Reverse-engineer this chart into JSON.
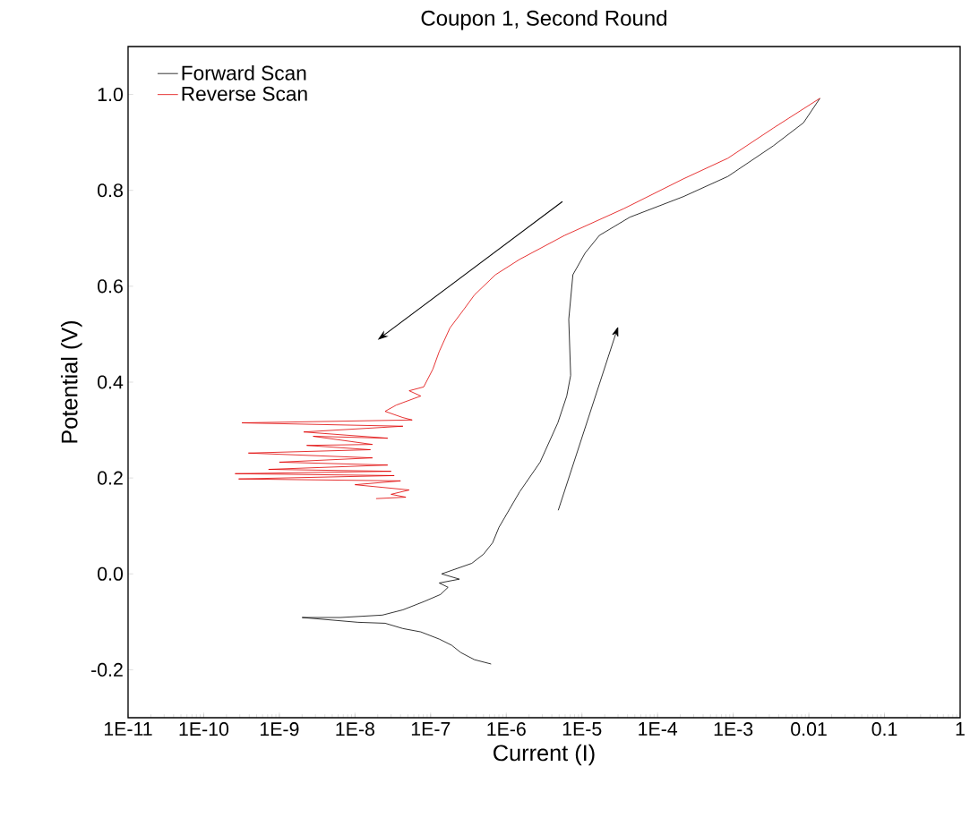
{
  "chart_data": {
    "type": "line",
    "title": "Coupon 1, Second Round",
    "xlabel": "Current (I)",
    "ylabel": "Potential (V)",
    "log": "x",
    "xlim": [
      1e-11,
      1
    ],
    "ylim": [
      -0.3,
      1.1
    ],
    "xticks": [
      {
        "value": 1e-11,
        "label": "1E-11"
      },
      {
        "value": 1e-10,
        "label": "1E-10"
      },
      {
        "value": 1e-09,
        "label": "1E-9"
      },
      {
        "value": 1e-08,
        "label": "1E-8"
      },
      {
        "value": 1e-07,
        "label": "1E-7"
      },
      {
        "value": 1e-06,
        "label": "1E-6"
      },
      {
        "value": 1e-05,
        "label": "1E-5"
      },
      {
        "value": 0.0001,
        "label": "1E-4"
      },
      {
        "value": 0.001,
        "label": "1E-3"
      },
      0.01,
      0.1,
      1
    ],
    "yticks": [
      -0.2,
      {
        "value": 0,
        "label": "0.0"
      },
      0.2,
      0.4,
      0.6,
      0.8,
      {
        "value": 1,
        "label": "1.0"
      }
    ],
    "legend": "top left",
    "grid": false,
    "marker": "none",
    "line_style": "solid",
    "series": [
      {
        "name": "Forward Scan",
        "color": "#000000",
        "x": [
          6.3e-07,
          3.8e-07,
          2.5e-07,
          1.9e-07,
          1.3e-07,
          7.4e-08,
          4.3e-08,
          2.5e-08,
          1.1e-08,
          2e-09,
          6.4e-09,
          2.3e-08,
          4.3e-08,
          8.1e-08,
          1.35e-07,
          1.7e-07,
          1.3e-07,
          2.4e-07,
          1.4e-07,
          3.5e-07,
          5e-07,
          6.6e-07,
          8e-07,
          1.5e-06,
          2.8e-06,
          4.8e-06,
          6.3e-06,
          7.1e-06,
          6.7e-06,
          7.6e-06,
          1.1e-05,
          1.7e-05,
          4.3e-05,
          0.00022,
          0.00085,
          0.0034,
          0.0085,
          0.014
        ],
        "values": [
          -0.188,
          -0.179,
          -0.164,
          -0.149,
          -0.136,
          -0.121,
          -0.114,
          -0.103,
          -0.101,
          -0.091,
          -0.091,
          -0.086,
          -0.075,
          -0.058,
          -0.043,
          -0.028,
          -0.019,
          -0.011,
          0.0,
          0.022,
          0.041,
          0.065,
          0.097,
          0.171,
          0.233,
          0.315,
          0.371,
          0.414,
          0.531,
          0.624,
          0.669,
          0.706,
          0.744,
          0.787,
          0.829,
          0.893,
          0.941,
          0.992
        ]
      },
      {
        "name": "Reverse Scan",
        "color": "#e00000",
        "x": [
          0.014,
          0.0034,
          0.00085,
          0.00022,
          3.6e-05,
          5.9e-06,
          1.5e-06,
          7.2e-07,
          3.8e-07,
          2.7e-07,
          1.8e-07,
          1.3e-07,
          1.07e-07,
          8.1e-08,
          5.2e-08,
          7.4e-08,
          3.5e-08,
          2.5e-08,
          4.3e-08,
          5.7e-08,
          3.2e-10,
          4.3e-08,
          2.1e-09,
          2.7e-08,
          2.8e-09,
          1.7e-08,
          2.3e-09,
          1.6e-08,
          3.9e-10,
          1.7e-08,
          1e-09,
          2.7e-08,
          7.2e-10,
          3e-08,
          2.6e-10,
          3.3e-08,
          2.9e-10,
          4e-08,
          1e-08,
          5.2e-08,
          3e-08,
          4.7e-08,
          1.9e-08
        ],
        "values": [
          0.992,
          0.93,
          0.867,
          0.824,
          0.762,
          0.706,
          0.656,
          0.624,
          0.582,
          0.55,
          0.513,
          0.464,
          0.427,
          0.39,
          0.382,
          0.371,
          0.352,
          0.339,
          0.326,
          0.321,
          0.315,
          0.308,
          0.296,
          0.283,
          0.287,
          0.27,
          0.268,
          0.259,
          0.252,
          0.242,
          0.233,
          0.227,
          0.218,
          0.214,
          0.209,
          0.205,
          0.198,
          0.194,
          0.186,
          0.175,
          0.166,
          0.16,
          0.157
        ]
      }
    ]
  }
}
